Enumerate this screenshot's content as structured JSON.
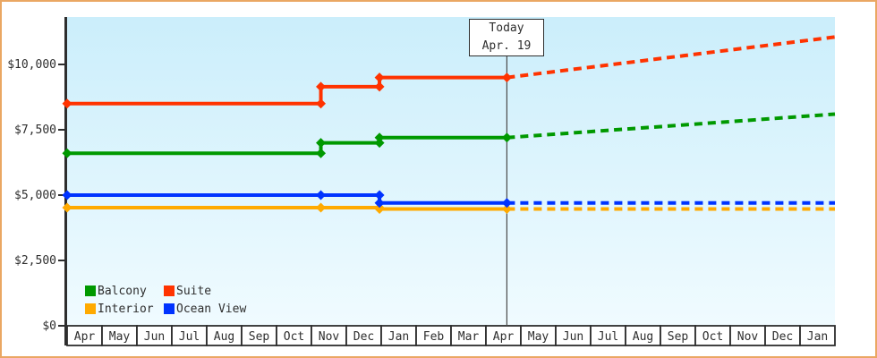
{
  "window": {
    "frame_border_color": "#eaa763",
    "background_color": "#ffffff"
  },
  "chart_data": {
    "type": "line",
    "title": "",
    "xlabel": "",
    "ylabel": "",
    "grid": false,
    "legend_position": "bottom-left",
    "marker_shape": "diamond",
    "axis_color": "#2e2e2e",
    "text_color": "#2e2e2e",
    "today_line_color": "#4a4a4a",
    "plot_bg_top": "#cbeefb",
    "plot_bg_bottom": "#f0fbff",
    "x_categories": [
      "Apr",
      "May",
      "Jun",
      "Jul",
      "Aug",
      "Sep",
      "Oct",
      "Nov",
      "Dec",
      "Jan",
      "Feb",
      "Mar",
      "Apr",
      "May",
      "Jun",
      "Jul",
      "Aug",
      "Sep",
      "Oct",
      "Nov",
      "Dec",
      "Jan"
    ],
    "y_ticks": [
      {
        "label": "$10,000",
        "value": 10000
      },
      {
        "label": "$7,500",
        "value": 7500
      },
      {
        "label": "$5,000",
        "value": 5000
      },
      {
        "label": "$2,500",
        "value": 2500
      },
      {
        "label": "$0",
        "value": 0
      }
    ],
    "ylim": [
      0,
      11800
    ],
    "x_months_range": [
      0,
      22
    ],
    "today": {
      "label_line1": "Today",
      "label_line2": "Apr. 19",
      "x_months": 12.6
    },
    "series": [
      {
        "name": "Balcony",
        "color": "#009900",
        "solid_points": [
          [
            0,
            6600
          ],
          [
            7.27,
            6600
          ],
          [
            7.27,
            7000
          ],
          [
            8.95,
            7000
          ],
          [
            8.95,
            7200
          ],
          [
            12.6,
            7200
          ]
        ],
        "predicted_points": [
          [
            12.6,
            7200
          ],
          [
            22,
            8100
          ]
        ]
      },
      {
        "name": "Suite",
        "color": "#ff3300",
        "solid_points": [
          [
            0,
            8500
          ],
          [
            7.27,
            8500
          ],
          [
            7.27,
            9150
          ],
          [
            8.95,
            9150
          ],
          [
            8.95,
            9500
          ],
          [
            12.6,
            9500
          ]
        ],
        "predicted_points": [
          [
            12.6,
            9500
          ],
          [
            22,
            11050
          ]
        ]
      },
      {
        "name": "Interior",
        "color": "#ffaa00",
        "solid_points": [
          [
            0,
            4520
          ],
          [
            7.27,
            4520
          ],
          [
            8.95,
            4520
          ],
          [
            8.95,
            4470
          ],
          [
            12.6,
            4470
          ]
        ],
        "predicted_points": [
          [
            12.6,
            4470
          ],
          [
            22,
            4470
          ]
        ]
      },
      {
        "name": "Ocean View",
        "color": "#0033ff",
        "solid_points": [
          [
            0,
            5000
          ],
          [
            7.27,
            5000
          ],
          [
            8.95,
            5000
          ],
          [
            8.95,
            4700
          ],
          [
            12.6,
            4700
          ]
        ],
        "predicted_points": [
          [
            12.6,
            4700
          ],
          [
            22,
            4700
          ]
        ]
      }
    ]
  }
}
